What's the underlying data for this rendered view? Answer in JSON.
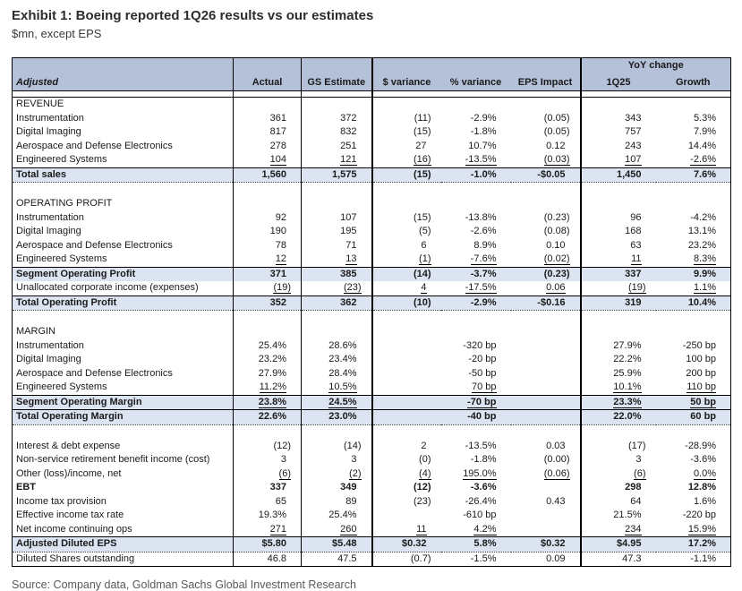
{
  "title": "Exhibit 1: Boeing reported 1Q26 results vs our estimates",
  "subtitle": "$mn, except EPS",
  "source": "Source: Company data, Goldman Sachs Global Investment Research",
  "colors": {
    "header_bg": "#b4c1d9",
    "subtotal_bg": "#dce3f1",
    "border": "#000000"
  },
  "table": {
    "yoy_group_label": "YoY change",
    "headers": [
      "Adjusted",
      "Actual",
      "GS Estimate",
      "$ variance",
      "% variance",
      "EPS Impact",
      "1Q25",
      "Growth"
    ],
    "rows": [
      {
        "type": "gap",
        "label": "",
        "cells": [
          "",
          "",
          "",
          "",
          "",
          "",
          ""
        ]
      },
      {
        "type": "section",
        "label": "REVENUE",
        "cells": [
          "",
          "",
          "",
          "",
          "",
          "",
          ""
        ]
      },
      {
        "type": "data",
        "label": "Instrumentation",
        "cells": [
          "361",
          "372",
          "(11)",
          "-2.9%",
          "(0.05)",
          "343",
          "5.3%"
        ]
      },
      {
        "type": "data",
        "label": "Digital Imaging",
        "cells": [
          "817",
          "832",
          "(15)",
          "-1.8%",
          "(0.05)",
          "757",
          "7.9%"
        ]
      },
      {
        "type": "data",
        "label": "Aerospace and Defense Electronics",
        "cells": [
          "278",
          "251",
          "27",
          "10.7%",
          "0.12",
          "243",
          "14.4%"
        ]
      },
      {
        "type": "data",
        "label": "Engineered Systems",
        "cells": [
          "104",
          "121",
          "(16)",
          "-13.5%",
          "(0.03)",
          "107",
          "-2.6%"
        ],
        "underline": true
      },
      {
        "type": "subtotal",
        "label": "Total sales",
        "cells": [
          "1,560",
          "1,575",
          "(15)",
          "-1.0%",
          "-$0.05",
          "1,450",
          "7.6%"
        ],
        "dottedBottom": true
      },
      {
        "type": "blank",
        "label": "",
        "cells": [
          "",
          "",
          "",
          "",
          "",
          "",
          ""
        ]
      },
      {
        "type": "section",
        "label": "OPERATING PROFIT",
        "cells": [
          "",
          "",
          "",
          "",
          "",
          "",
          ""
        ]
      },
      {
        "type": "data",
        "label": "Instrumentation",
        "cells": [
          "92",
          "107",
          "(15)",
          "-13.8%",
          "(0.23)",
          "96",
          "-4.2%"
        ]
      },
      {
        "type": "data",
        "label": "Digital Imaging",
        "cells": [
          "190",
          "195",
          "(5)",
          "-2.6%",
          "(0.08)",
          "168",
          "13.1%"
        ]
      },
      {
        "type": "data",
        "label": "Aerospace and Defense Electronics",
        "cells": [
          "78",
          "71",
          "6",
          "8.9%",
          "0.10",
          "63",
          "23.2%"
        ]
      },
      {
        "type": "data",
        "label": "Engineered Systems",
        "cells": [
          "12",
          "13",
          "(1)",
          "-7.6%",
          "(0.02)",
          "11",
          "8.3%"
        ],
        "underline": true
      },
      {
        "type": "subtotal",
        "label": "Segment Operating Profit",
        "cells": [
          "371",
          "385",
          "(14)",
          "-3.7%",
          "(0.23)",
          "337",
          "9.9%"
        ]
      },
      {
        "type": "data",
        "label": "Unallocated corporate income (expenses)",
        "cells": [
          "(19)",
          "(23)",
          "4",
          "-17.5%",
          "0.06",
          "(19)",
          "1.1%"
        ],
        "underline": true
      },
      {
        "type": "subtotal",
        "label": "Total Operating Profit",
        "cells": [
          "352",
          "362",
          "(10)",
          "-2.9%",
          "-$0.16",
          "319",
          "10.4%"
        ],
        "dottedBottom": true
      },
      {
        "type": "blank",
        "label": "",
        "cells": [
          "",
          "",
          "",
          "",
          "",
          "",
          ""
        ]
      },
      {
        "type": "section",
        "label": "MARGIN",
        "cells": [
          "",
          "",
          "",
          "",
          "",
          "",
          ""
        ]
      },
      {
        "type": "data",
        "label": "Instrumentation",
        "cells": [
          "25.4%",
          "28.6%",
          "",
          "-320 bp",
          "",
          "27.9%",
          "-250 bp"
        ]
      },
      {
        "type": "data",
        "label": "Digital Imaging",
        "cells": [
          "23.2%",
          "23.4%",
          "",
          "-20 bp",
          "",
          "22.2%",
          "100 bp"
        ]
      },
      {
        "type": "data",
        "label": "Aerospace and Defense Electronics",
        "cells": [
          "27.9%",
          "28.4%",
          "",
          "-50 bp",
          "",
          "25.9%",
          "200 bp"
        ]
      },
      {
        "type": "data",
        "label": "Engineered Systems",
        "cells": [
          "11.2%",
          "10.5%",
          "",
          "70 bp",
          "",
          "10.1%",
          "110 bp"
        ],
        "underline": true
      },
      {
        "type": "subtotal",
        "label": "Segment Operating Margin",
        "cells": [
          "23.8%",
          "24.5%",
          "",
          "-70 bp",
          "",
          "23.3%",
          "50 bp"
        ],
        "underline": true
      },
      {
        "type": "subtotal",
        "label": "Total Operating Margin",
        "cells": [
          "22.6%",
          "23.0%",
          "",
          "-40 bp",
          "",
          "22.0%",
          "60 bp"
        ],
        "dottedBottom": true
      },
      {
        "type": "blank",
        "label": "",
        "cells": [
          "",
          "",
          "",
          "",
          "",
          "",
          ""
        ]
      },
      {
        "type": "data",
        "label": "Interest & debt expense",
        "cells": [
          "(12)",
          "(14)",
          "2",
          "-13.5%",
          "0.03",
          "(17)",
          "-28.9%"
        ]
      },
      {
        "type": "data",
        "label": "Non-service retirement benefit income (cost)",
        "cells": [
          "3",
          "3",
          "(0)",
          "-1.8%",
          "(0.00)",
          "3",
          "-3.6%"
        ]
      },
      {
        "type": "data",
        "label": "Other (loss)/income, net",
        "cells": [
          "(6)",
          "(2)",
          "(4)",
          "195.0%",
          "(0.06)",
          "(6)",
          "0.0%"
        ],
        "underline": true
      },
      {
        "type": "data",
        "label": "EBT",
        "cells": [
          "337",
          "349",
          "(12)",
          "-3.6%",
          "",
          "298",
          "12.8%"
        ],
        "bold": true
      },
      {
        "type": "data",
        "label": "Income tax provision",
        "cells": [
          "65",
          "89",
          "(23)",
          "-26.4%",
          "0.43",
          "64",
          "1.6%"
        ]
      },
      {
        "type": "data",
        "label": "Effective income tax rate",
        "cells": [
          "19.3%",
          "25.4%",
          "",
          "-610 bp",
          "",
          "21.5%",
          "-220 bp"
        ]
      },
      {
        "type": "data",
        "label": "Net income continuing ops",
        "cells": [
          "271",
          "260",
          "11",
          "4.2%",
          "",
          "234",
          "15.9%"
        ],
        "underline": true
      },
      {
        "type": "subtotal",
        "label": "Adjusted Diluted EPS",
        "cells": [
          "$5.80",
          "$5.48",
          "$0.32",
          "5.8%",
          "$0.32",
          "$4.95",
          "17.2%"
        ],
        "dottedBottom": true
      },
      {
        "type": "data",
        "label": "Diluted Shares outstanding",
        "cells": [
          "46.8",
          "47.5",
          "(0.7)",
          "-1.5%",
          "0.09",
          "47.3",
          "-1.1%"
        ]
      }
    ]
  }
}
